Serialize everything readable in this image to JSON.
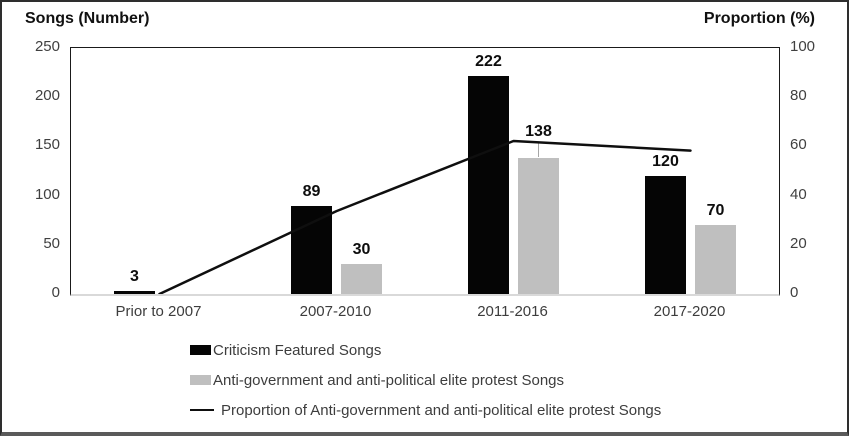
{
  "chart_data": {
    "type": "bar",
    "subtype": "grouped bars with secondary-axis line (no gridlines)",
    "categories": [
      "Prior to 2007",
      "2007-2010",
      "2011-2016",
      "2017-2020"
    ],
    "series": [
      {
        "name": "Criticism Featured Songs",
        "kind": "bar",
        "color": "#050505",
        "axis": "left",
        "values": [
          3,
          89,
          222,
          120
        ],
        "labels": [
          "3",
          "89",
          "222",
          "120"
        ]
      },
      {
        "name": "Anti-government and anti-political elite protest Songs",
        "kind": "bar",
        "color": "#bfbfbf",
        "axis": "left",
        "values": [
          0,
          30,
          138,
          70
        ],
        "labels": [
          "",
          "30",
          "138",
          "70"
        ],
        "label_extra_raise": [
          0,
          0,
          12,
          0
        ],
        "label_leader": [
          false,
          false,
          true,
          false
        ]
      },
      {
        "name": "Proportion of Anti-government and anti-political elite protest Songs",
        "kind": "line",
        "color": "#0f0f0f",
        "axis": "right",
        "values": [
          0,
          33.7,
          62.2,
          58.3
        ]
      }
    ],
    "left_axis": {
      "title": "Songs (Number)",
      "min": 0,
      "max": 250,
      "ticks": [
        250,
        200,
        150,
        100,
        50,
        0
      ]
    },
    "right_axis": {
      "title": "Proportion (%)",
      "min": 0,
      "max": 100,
      "ticks": [
        100,
        80,
        60,
        40,
        20,
        0
      ]
    },
    "legend": {
      "position": "bottom-left"
    },
    "grid": "off"
  }
}
